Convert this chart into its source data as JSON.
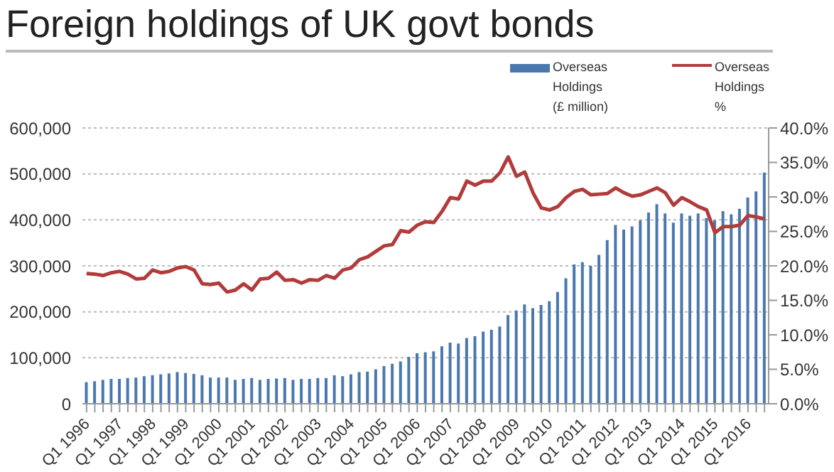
{
  "chart_data": {
    "type": "bar",
    "title": "Foreign holdings of UK govt bonds",
    "categories": [
      "Q1 1996",
      null,
      null,
      null,
      "Q1 1997",
      null,
      null,
      null,
      "Q1 1998",
      null,
      null,
      null,
      "Q1 1999",
      null,
      null,
      null,
      "Q1 2000",
      null,
      null,
      null,
      "Q1 2001",
      null,
      null,
      null,
      "Q1 2002",
      null,
      null,
      null,
      "Q1 2003",
      null,
      null,
      null,
      "Q1 2004",
      null,
      null,
      null,
      "Q1 2005",
      null,
      null,
      null,
      "Q1 2006",
      null,
      null,
      null,
      "Q1 2007",
      null,
      null,
      null,
      "Q1 2008",
      null,
      null,
      null,
      "Q1 2009",
      null,
      null,
      null,
      "Q1 2010",
      null,
      null,
      null,
      "Q1 2011",
      null,
      null,
      null,
      "Q1 2012",
      null,
      null,
      null,
      "Q1 2013",
      null,
      null,
      null,
      "Q1 2014",
      null,
      null,
      null,
      "Q1 2015",
      null,
      null,
      null,
      "Q1 2016",
      null,
      null
    ],
    "series": [
      {
        "name": "Overseas Holdings (£ million)",
        "color": "#4a78ae",
        "values": [
          47000,
          49000,
          52000,
          54000,
          54000,
          56000,
          57000,
          60000,
          62000,
          64000,
          66000,
          69000,
          67000,
          65000,
          62000,
          57000,
          57000,
          57000,
          52000,
          54000,
          56000,
          52000,
          54000,
          55000,
          56000,
          52000,
          54000,
          54000,
          56000,
          56000,
          62000,
          60000,
          64000,
          69000,
          70000,
          75000,
          82000,
          87000,
          92000,
          102000,
          110000,
          112000,
          114000,
          125000,
          133000,
          131000,
          143000,
          147000,
          157000,
          161000,
          168000,
          193000,
          203000,
          216000,
          208000,
          215000,
          223000,
          243000,
          273000,
          303000,
          308000,
          300000,
          324000,
          356000,
          389000,
          379000,
          386000,
          399000,
          416000,
          434000,
          414000,
          394000,
          414000,
          409000,
          414000,
          404000,
          399000,
          419000,
          412000,
          424000,
          449000,
          462000,
          503000
        ]
      },
      {
        "name": "Overseas Holdings %",
        "type": "line",
        "axis": "y2",
        "color": "#b23b3b",
        "values": [
          18.9,
          18.8,
          18.6,
          19.0,
          19.2,
          18.8,
          18.1,
          18.2,
          19.4,
          19.0,
          19.2,
          19.7,
          19.9,
          19.4,
          17.4,
          17.3,
          17.5,
          16.2,
          16.5,
          17.4,
          16.5,
          18.1,
          18.2,
          19.1,
          17.9,
          18.0,
          17.5,
          18.0,
          17.9,
          18.6,
          18.2,
          19.4,
          19.7,
          20.9,
          21.3,
          22.1,
          22.9,
          23.1,
          25.1,
          24.9,
          25.9,
          26.4,
          26.3,
          27.9,
          29.9,
          29.7,
          32.3,
          31.7,
          32.3,
          32.3,
          33.5,
          35.8,
          33.0,
          33.6,
          30.6,
          28.4,
          28.1,
          28.6,
          29.9,
          30.8,
          31.1,
          30.3,
          30.4,
          30.5,
          31.3,
          30.6,
          30.1,
          30.3,
          30.8,
          31.3,
          30.6,
          28.8,
          29.9,
          29.3,
          28.6,
          28.1,
          24.8,
          25.7,
          25.7,
          25.9,
          27.3,
          27.1,
          26.8
        ]
      }
    ],
    "ylim": [
      0,
      600000
    ],
    "yticks": [
      {
        "value": 0,
        "label": "0"
      },
      {
        "value": 100000,
        "label": "100,000"
      },
      {
        "value": 200000,
        "label": "200,000"
      },
      {
        "value": 300000,
        "label": "300,000"
      },
      {
        "value": 400000,
        "label": "400,000"
      },
      {
        "value": 500000,
        "label": "500,000"
      },
      {
        "value": 600000,
        "label": "600,000"
      }
    ],
    "y2lim": [
      0,
      40
    ],
    "y2ticks": [
      {
        "value": 0,
        "label": "0.0%"
      },
      {
        "value": 5,
        "label": "5.0%"
      },
      {
        "value": 10,
        "label": "10.0%"
      },
      {
        "value": 15,
        "label": "15.0%"
      },
      {
        "value": 20,
        "label": "20.0%"
      },
      {
        "value": 25,
        "label": "25.0%"
      },
      {
        "value": 30,
        "label": "30.0%"
      },
      {
        "value": 35,
        "label": "35.0%"
      },
      {
        "value": 40,
        "label": "40.0%"
      }
    ],
    "grid": "y",
    "legend": "top right",
    "marker": "none",
    "line_style": "solid"
  }
}
